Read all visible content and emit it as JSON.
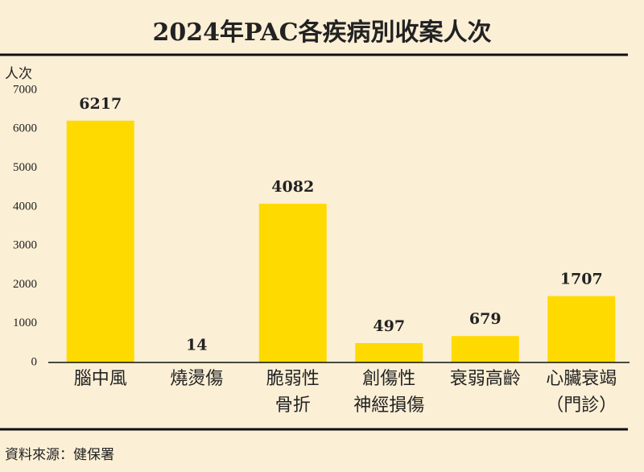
{
  "chart_data": {
    "type": "bar",
    "title": "2024年PAC各疾病別收案人次",
    "y_label": "人次",
    "categories": [
      [
        "腦中風"
      ],
      [
        "燒燙傷"
      ],
      [
        "脆弱性",
        "骨折"
      ],
      [
        "創傷性",
        "神經損傷"
      ],
      [
        "衰弱高齡"
      ],
      [
        "心臟衰竭",
        "（門診）"
      ]
    ],
    "values": [
      6217,
      14,
      4082,
      497,
      679,
      1707
    ],
    "color": "#ffda00",
    "ylim": [
      0,
      7000
    ],
    "yticks": [
      0,
      1000,
      2000,
      3000,
      4000,
      5000,
      6000,
      7000
    ],
    "grid": false,
    "source": "資料來源：健保署"
  }
}
